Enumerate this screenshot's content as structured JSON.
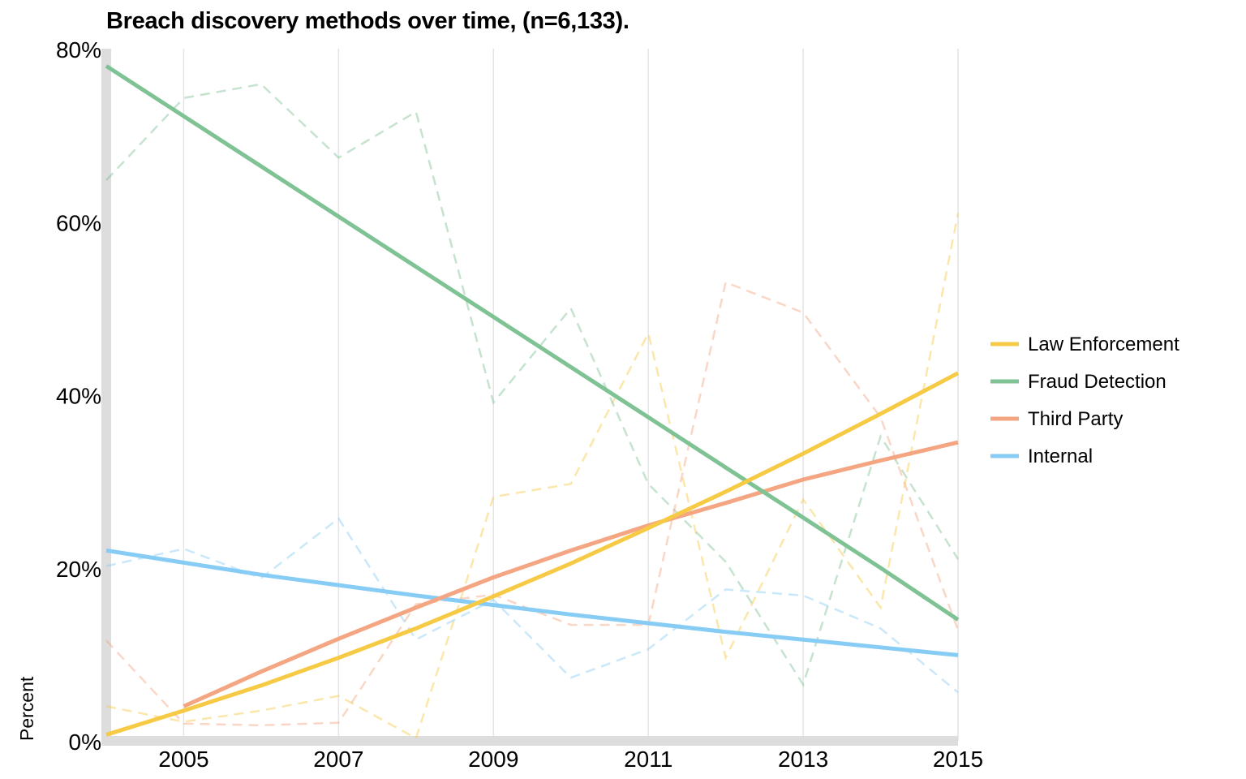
{
  "chart_data": {
    "type": "line",
    "title": "Breach discovery methods over time, (n=6,133).",
    "xlabel": "",
    "ylabel": "Percent",
    "xlim": [
      2004,
      2015
    ],
    "ylim": [
      0,
      80
    ],
    "x_ticks": [
      2005,
      2007,
      2009,
      2011,
      2013,
      2015
    ],
    "y_ticks": [
      0,
      20,
      40,
      60,
      80
    ],
    "y_tick_format": "{v}%",
    "grid": "vertical",
    "legend_position": "right",
    "x": [
      2004,
      2005,
      2006,
      2007,
      2008,
      2009,
      2010,
      2011,
      2012,
      2013,
      2014,
      2015
    ],
    "series": [
      {
        "name": "Law Enforcement",
        "color": "#F7CA45",
        "observed": [
          4.0,
          2.2,
          3.5,
          5.2,
          0.3,
          28.2,
          29.7,
          47.1,
          9.6,
          27.9,
          15.4,
          61.0
        ],
        "trend": [
          0.7,
          3.5,
          6.4,
          9.6,
          13.0,
          16.7,
          20.5,
          24.6,
          28.8,
          33.2,
          37.8,
          42.5
        ]
      },
      {
        "name": "Fraud Detection",
        "color": "#7FC294",
        "observed": [
          64.8,
          74.3,
          75.9,
          67.4,
          72.7,
          39.1,
          50.0,
          29.7,
          20.7,
          6.5,
          35.2,
          21.0
        ],
        "trend": [
          78.0,
          72.2,
          66.4,
          60.6,
          54.8,
          49.0,
          43.2,
          37.4,
          31.6,
          25.8,
          20.0,
          14.0
        ]
      },
      {
        "name": "Third Party",
        "color": "#F4A582",
        "observed": [
          11.6,
          2.0,
          1.8,
          2.1,
          15.8,
          16.9,
          13.4,
          13.4,
          53.0,
          49.5,
          37.4,
          12.8
        ],
        "trend": [
          null,
          4.0,
          8.0,
          11.8,
          15.4,
          18.9,
          22.0,
          24.9,
          27.5,
          30.2,
          32.4,
          34.5
        ]
      },
      {
        "name": "Internal",
        "color": "#87CCF5",
        "observed": [
          20.2,
          22.2,
          18.8,
          25.7,
          11.7,
          16.3,
          7.3,
          10.6,
          17.5,
          16.8,
          13.0,
          5.6
        ],
        "trend": [
          22.0,
          20.6,
          19.2,
          18.0,
          16.8,
          15.7,
          14.6,
          13.6,
          12.6,
          11.7,
          10.8,
          9.9
        ]
      }
    ]
  }
}
